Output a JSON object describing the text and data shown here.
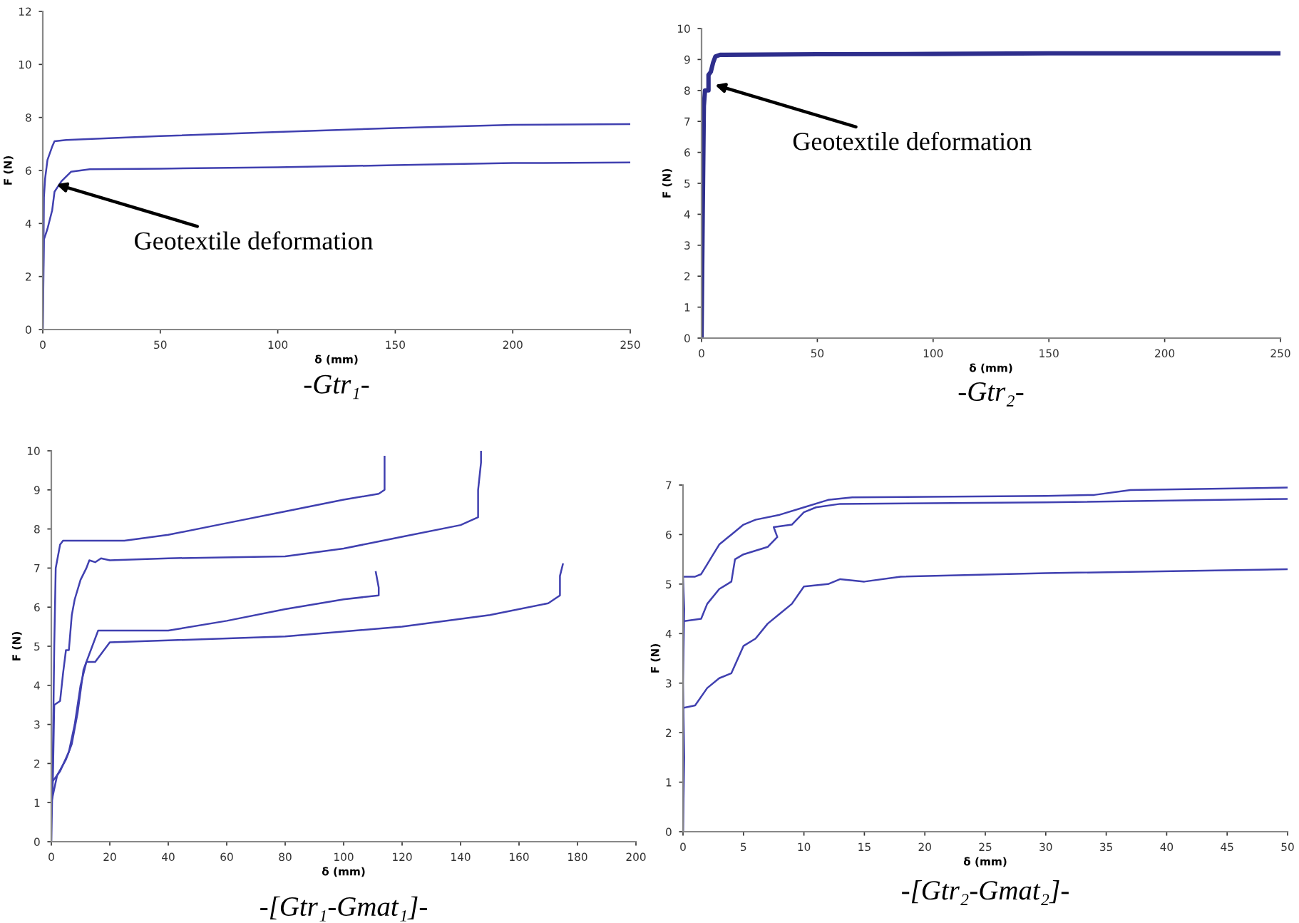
{
  "chart_data": [
    {
      "type": "line",
      "title": "-Gtr₁-",
      "xlabel": "δ (mm)",
      "ylabel": "F (N)",
      "xlim": [
        0,
        250
      ],
      "ylim": [
        0,
        12
      ],
      "xticks": [
        0,
        50,
        100,
        150,
        200,
        250
      ],
      "yticks": [
        0,
        2,
        4,
        6,
        8,
        10,
        12
      ],
      "grid": false,
      "legend": false,
      "marker": "none",
      "line_style": "solid",
      "annotations": [
        {
          "text": "Geotextile deformation",
          "x": 5,
          "y": 5.5
        }
      ],
      "series": [
        {
          "color": "#4040b0",
          "x": [
            0,
            0.3,
            0.5,
            1,
            2,
            4,
            5,
            10,
            50,
            100,
            150,
            200,
            250
          ],
          "values": [
            0,
            3,
            5,
            5.7,
            6.4,
            6.9,
            7.1,
            7.15,
            7.3,
            7.45,
            7.6,
            7.72,
            7.75
          ]
        },
        {
          "color": "#4040b0",
          "x": [
            0,
            0.3,
            0.5,
            2,
            4,
            5,
            8,
            12,
            20,
            50,
            100,
            150,
            200,
            250
          ],
          "values": [
            0,
            2,
            3.4,
            3.8,
            4.5,
            5.2,
            5.6,
            5.95,
            6.05,
            6.07,
            6.12,
            6.2,
            6.28,
            6.3
          ]
        }
      ]
    },
    {
      "type": "line",
      "title": "-Gtr₂-",
      "xlabel": "δ (mm)",
      "ylabel": "F (N)",
      "xlim": [
        0,
        250
      ],
      "ylim": [
        0,
        10
      ],
      "xticks": [
        0,
        50,
        100,
        150,
        200,
        250
      ],
      "yticks": [
        0,
        1,
        2,
        3,
        4,
        5,
        6,
        7,
        8,
        9,
        10
      ],
      "grid": false,
      "legend": false,
      "marker": "none",
      "line_style": "solid",
      "annotations": [
        {
          "text": "Geotextile deformation",
          "x": 5,
          "y": 8.2
        }
      ],
      "series": [
        {
          "color": "#2e2e8c",
          "x": [
            0,
            0.5,
            1,
            1.5,
            3,
            3,
            4,
            5,
            6,
            8,
            50,
            100,
            150,
            250
          ],
          "values": [
            0,
            4,
            7.5,
            8,
            8,
            8.5,
            8.6,
            8.9,
            9.1,
            9.15,
            9.17,
            9.18,
            9.2,
            9.2
          ]
        }
      ]
    },
    {
      "type": "line",
      "title": "-[Gtr₁-Gmat₁]-",
      "xlabel": "δ (mm)",
      "ylabel": "F (N)",
      "xlim": [
        0,
        200
      ],
      "ylim": [
        0,
        10
      ],
      "xticks": [
        0,
        20,
        40,
        60,
        80,
        100,
        120,
        140,
        160,
        180,
        200
      ],
      "yticks": [
        0,
        1,
        2,
        3,
        4,
        5,
        6,
        7,
        8,
        9,
        10
      ],
      "grid": false,
      "legend": false,
      "marker": "none",
      "line_style": "solid",
      "series": [
        {
          "color": "#4040b0",
          "x": [
            0,
            0.5,
            1,
            1.5,
            3,
            4,
            25,
            40,
            60,
            80,
            100,
            112,
            114,
            114
          ],
          "values": [
            0,
            2,
            5,
            7,
            7.6,
            7.7,
            7.7,
            7.85,
            8.15,
            8.45,
            8.75,
            8.9,
            9.0,
            9.85
          ]
        },
        {
          "color": "#4040b0",
          "x": [
            0,
            0.5,
            1,
            3,
            4,
            5,
            6,
            7,
            8,
            10,
            12,
            13,
            15,
            17,
            20,
            40,
            80,
            100,
            120,
            140,
            146,
            146,
            147,
            147
          ],
          "values": [
            0.8,
            1.5,
            3.5,
            3.6,
            4.3,
            4.9,
            4.9,
            5.8,
            6.2,
            6.7,
            7.0,
            7.2,
            7.15,
            7.25,
            7.2,
            7.25,
            7.3,
            7.5,
            7.8,
            8.1,
            8.3,
            9,
            9.7,
            10
          ]
        },
        {
          "color": "#4040b0",
          "x": [
            0,
            2,
            5,
            7,
            9,
            11,
            14,
            16,
            25,
            40,
            60,
            80,
            100,
            112,
            112,
            111
          ],
          "values": [
            1,
            1.7,
            2.1,
            2.5,
            3.3,
            4.4,
            5.0,
            5.4,
            5.4,
            5.4,
            5.65,
            5.95,
            6.2,
            6.3,
            6.5,
            6.9
          ]
        },
        {
          "color": "#4040b0",
          "x": [
            0,
            3,
            6,
            8,
            10,
            12,
            15,
            18,
            20,
            40,
            80,
            120,
            150,
            170,
            174,
            174,
            175
          ],
          "values": [
            1.5,
            1.8,
            2.3,
            3.0,
            4.0,
            4.6,
            4.6,
            4.9,
            5.1,
            5.15,
            5.25,
            5.5,
            5.8,
            6.1,
            6.3,
            6.8,
            7.1
          ]
        }
      ]
    },
    {
      "type": "line",
      "title": "-[Gtr₂-Gmat₂]-",
      "xlabel": "δ (mm)",
      "ylabel": "F (N)",
      "xlim": [
        0,
        50
      ],
      "ylim": [
        0,
        7
      ],
      "xticks": [
        0,
        5,
        10,
        15,
        20,
        25,
        30,
        35,
        40,
        45,
        50
      ],
      "yticks": [
        0,
        1,
        2,
        3,
        4,
        5,
        6,
        7
      ],
      "grid": false,
      "legend": false,
      "marker": "none",
      "line_style": "solid",
      "series": [
        {
          "color": "#4040b0",
          "x": [
            0,
            0.1,
            0,
            0.1,
            0,
            1,
            1.5,
            2,
            2.5,
            3,
            4,
            5,
            6,
            8,
            10,
            12,
            14,
            30,
            34,
            37,
            50
          ],
          "values": [
            0,
            1.5,
            3,
            4.5,
            5.15,
            5.15,
            5.2,
            5.4,
            5.6,
            5.8,
            6.0,
            6.2,
            6.3,
            6.4,
            6.55,
            6.7,
            6.75,
            6.78,
            6.8,
            6.9,
            6.95
          ]
        },
        {
          "color": "#4040b0",
          "x": [
            0,
            1.5,
            2,
            3,
            4,
            4.3,
            5,
            7,
            7.8,
            7.5,
            9,
            10,
            11,
            13,
            30,
            50
          ],
          "values": [
            4.25,
            4.3,
            4.6,
            4.9,
            5.05,
            5.5,
            5.6,
            5.75,
            5.95,
            6.15,
            6.2,
            6.45,
            6.55,
            6.62,
            6.65,
            6.72
          ]
        },
        {
          "color": "#4040b0",
          "x": [
            0,
            0,
            1,
            2,
            3,
            4,
            5,
            6,
            7,
            8,
            9,
            10,
            12,
            13,
            15,
            18,
            30,
            50
          ],
          "values": [
            0,
            2.5,
            2.55,
            2.9,
            3.1,
            3.2,
            3.75,
            3.9,
            4.2,
            4.4,
            4.6,
            4.95,
            5.0,
            5.1,
            5.05,
            5.15,
            5.22,
            5.3
          ]
        }
      ]
    }
  ]
}
